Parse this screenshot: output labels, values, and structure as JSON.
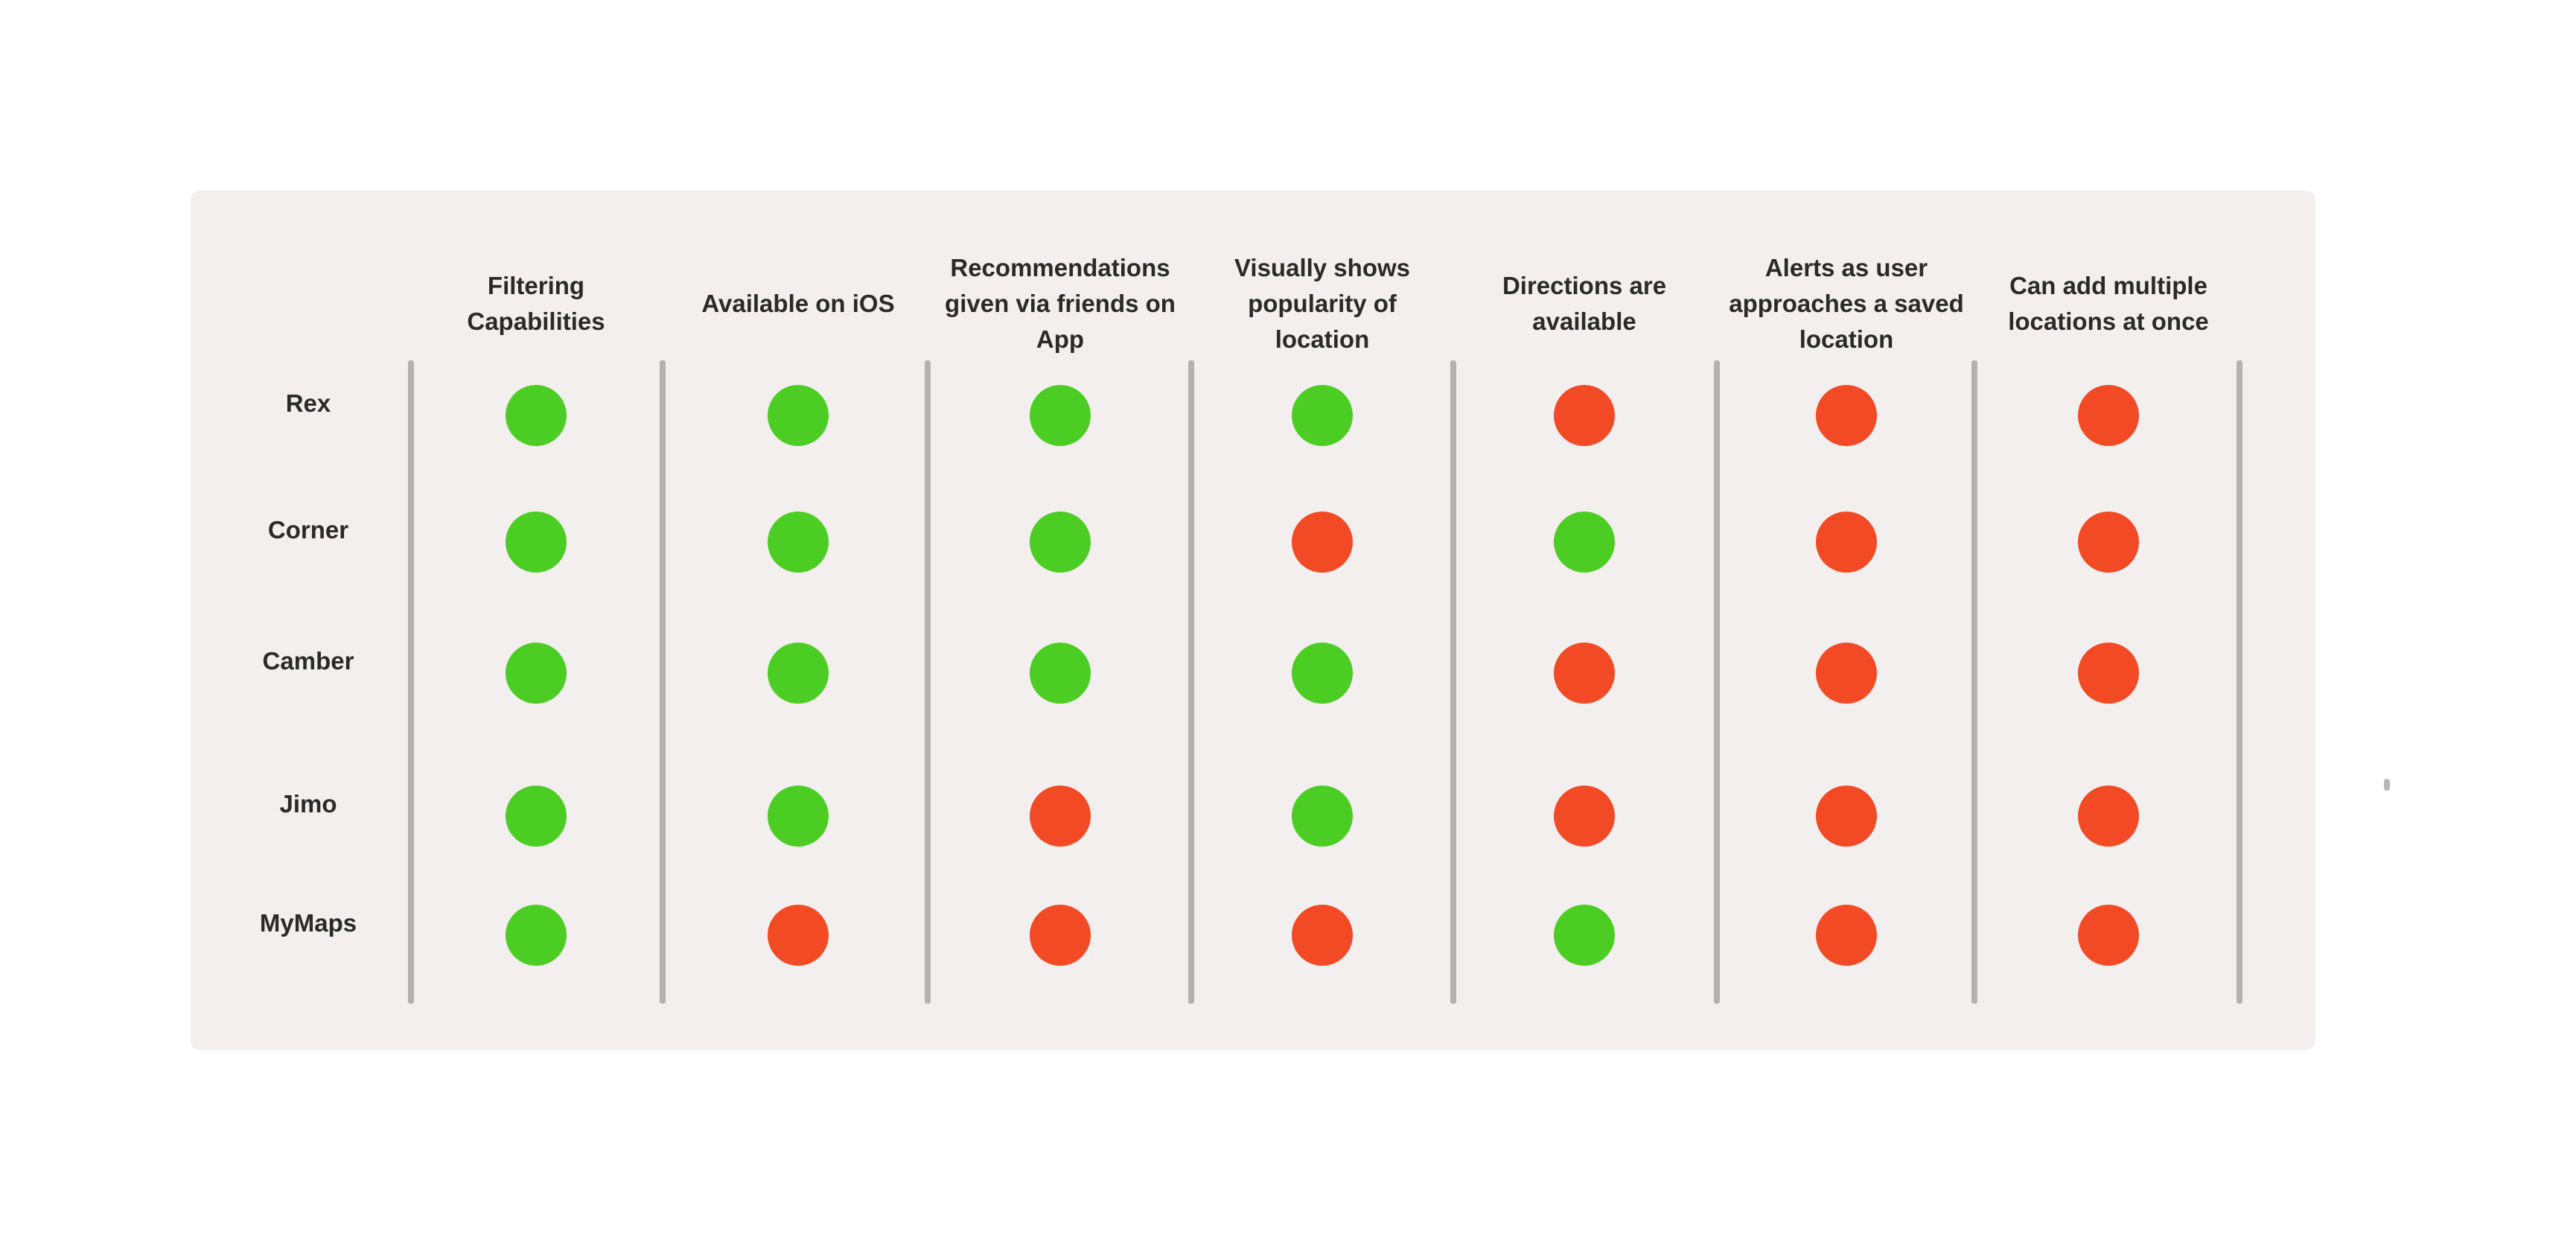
{
  "colors": {
    "yes": "#4ccd24",
    "no": "#f24a24",
    "divider": "#b3b2b1",
    "card": "#f2efee"
  },
  "columns": [
    "Filtering Capabilities",
    "Available on iOS",
    "Recommendations given via friends on App",
    "Visually shows popularity of location",
    "Directions are available",
    "Alerts as user approaches a saved location",
    "Can add multiple locations at once"
  ],
  "rows": [
    {
      "name": "Rex",
      "values": [
        true,
        true,
        true,
        true,
        false,
        false,
        false
      ]
    },
    {
      "name": "Corner",
      "values": [
        true,
        true,
        true,
        false,
        true,
        false,
        false
      ]
    },
    {
      "name": "Camber",
      "values": [
        true,
        true,
        true,
        true,
        false,
        false,
        false
      ]
    },
    {
      "name": "Jimo",
      "values": [
        true,
        true,
        false,
        true,
        false,
        false,
        false
      ]
    },
    {
      "name": "MyMaps",
      "values": [
        true,
        false,
        false,
        false,
        true,
        false,
        false
      ]
    }
  ]
}
